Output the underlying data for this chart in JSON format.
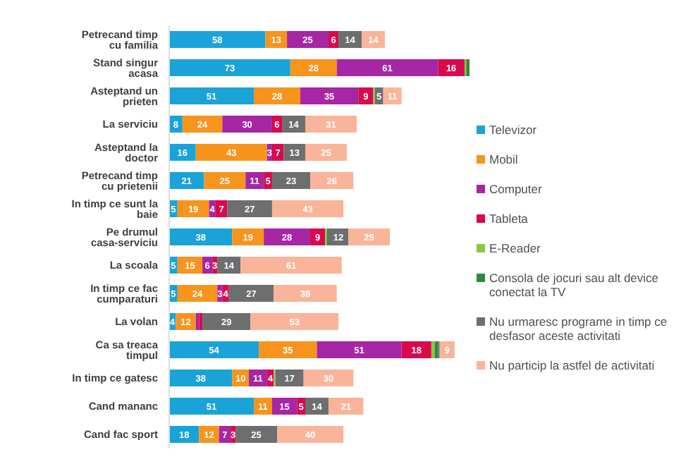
{
  "chart_data": {
    "type": "bar",
    "orientation": "horizontal",
    "stacked": true,
    "legend": "right",
    "grid": false,
    "categories": [
      "Petrecand timp cu familia",
      "Stand singur acasa",
      "Asteptand un prieten",
      "La serviciu",
      "Asteptand la doctor",
      "Petrecand timp cu prietenii",
      "In timp ce sunt la baie",
      "Pe drumul casa-serviciu",
      "La scoala",
      "In timp ce fac cumparaturi",
      "La volan",
      "Ca sa treaca timpul",
      "In timp ce gatesc",
      "Cand mananc",
      "Cand fac sport"
    ],
    "series": [
      {
        "name": "Televizor",
        "color": "#1aa3d8",
        "values": [
          58,
          73,
          51,
          8,
          16,
          21,
          5,
          38,
          5,
          5,
          4,
          54,
          38,
          51,
          18
        ],
        "value_labels": [
          "58",
          "73",
          "51",
          "8",
          "16",
          "21",
          "5",
          "38",
          "5",
          "5",
          "4",
          "54",
          "38",
          "51",
          "18"
        ]
      },
      {
        "name": "Mobil",
        "color": "#f7941d",
        "values": [
          13,
          28,
          28,
          24,
          43,
          25,
          19,
          19,
          15,
          24,
          12,
          35,
          10,
          11,
          12
        ],
        "value_labels": [
          "13",
          "28",
          "28",
          "24",
          "43",
          "25",
          "19",
          "19",
          "15",
          "24",
          "12",
          "35",
          "10",
          "11",
          "12"
        ]
      },
      {
        "name": "Computer",
        "color": "#a626a4",
        "values": [
          25,
          61,
          35,
          30,
          3,
          11,
          4,
          28,
          6,
          3,
          2,
          51,
          11,
          15,
          7
        ],
        "value_labels": [
          "25",
          "61",
          "35",
          "30",
          "3",
          "11",
          "4",
          "28",
          "6",
          "3",
          null,
          "51",
          "11",
          "15",
          "7"
        ]
      },
      {
        "name": "Tableta",
        "color": "#d9094d",
        "values": [
          6,
          16,
          9,
          6,
          7,
          5,
          7,
          9,
          3,
          4,
          2,
          18,
          4,
          5,
          3
        ],
        "value_labels": [
          "6",
          "16",
          "9",
          "6",
          "7",
          "5",
          "7",
          "9",
          "3",
          "4",
          null,
          "18",
          "4",
          "5",
          "3"
        ]
      },
      {
        "name": "E-Reader",
        "color": "#8dc63f",
        "values": [
          null,
          1,
          1,
          null,
          null,
          null,
          null,
          1,
          null,
          null,
          null,
          2,
          1,
          null,
          null
        ],
        "value_labels": [
          null,
          null,
          null,
          null,
          null,
          null,
          null,
          null,
          null,
          null,
          null,
          null,
          null,
          null,
          null
        ]
      },
      {
        "name": "Consola de jocuri sau alt device conectat la TV",
        "color": "#2e8b3e",
        "values": [
          null,
          2,
          null,
          null,
          null,
          null,
          null,
          1,
          null,
          null,
          null,
          2,
          null,
          null,
          null
        ],
        "value_labels": [
          null,
          null,
          null,
          null,
          null,
          null,
          null,
          null,
          null,
          null,
          null,
          null,
          null,
          null,
          null
        ]
      },
      {
        "name": "Nu urmaresc programe in timp ce desfasor aceste activitati",
        "color": "#6d6e70",
        "values": [
          14,
          null,
          5,
          14,
          13,
          23,
          27,
          12,
          14,
          27,
          29,
          1,
          17,
          14,
          25
        ],
        "value_labels": [
          "14",
          null,
          "5",
          "14",
          "13",
          "23",
          "27",
          "12",
          "14",
          "27",
          "29",
          null,
          "17",
          "14",
          "25"
        ]
      },
      {
        "name": "Nu particip la astfel de activitati",
        "color": "#f9b49a",
        "values": [
          14,
          null,
          11,
          31,
          25,
          26,
          43,
          25,
          61,
          38,
          53,
          9,
          30,
          21,
          40
        ],
        "value_labels": [
          "14",
          null,
          "11",
          "31",
          "25",
          "26",
          "43",
          "25",
          "61",
          "38",
          "53",
          "9",
          "30",
          "21",
          "40"
        ]
      }
    ]
  }
}
